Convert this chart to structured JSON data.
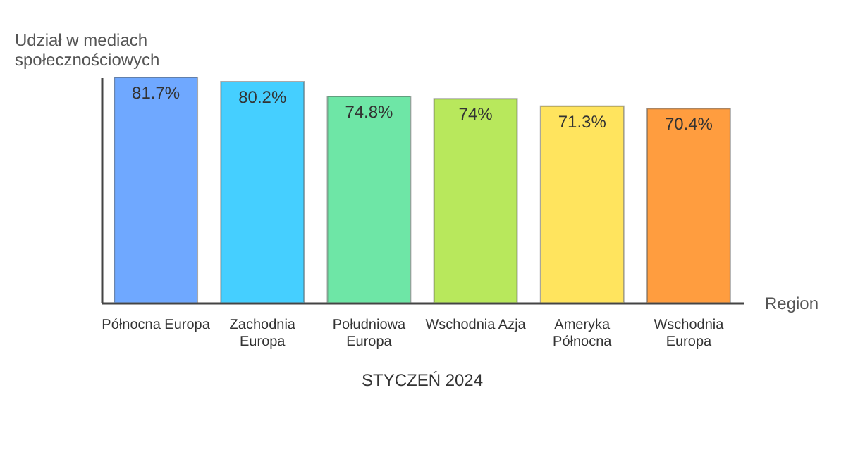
{
  "chart_data": {
    "type": "bar",
    "title": "STYCZEŃ 2024",
    "xlabel": "Region",
    "ylabel": "Udział w mediach społecznościowych",
    "categories": [
      "Północna Europa",
      "Zachodnia Europa",
      "Południowa Europa",
      "Wschodnia Azja",
      "Ameryka Północna",
      "Wschodnia Europa"
    ],
    "values": [
      81.7,
      80.2,
      74.8,
      74,
      71.3,
      70.4
    ],
    "colors": [
      "#6fa8ff",
      "#45cfff",
      "#6ee6a6",
      "#b8e85c",
      "#ffe45e",
      "#ff9d3f"
    ],
    "value_labels": [
      "81.7%",
      "80.2%",
      "74.8%",
      "74%",
      "71.3%",
      "70.4%"
    ],
    "grid": false,
    "legend": false
  }
}
